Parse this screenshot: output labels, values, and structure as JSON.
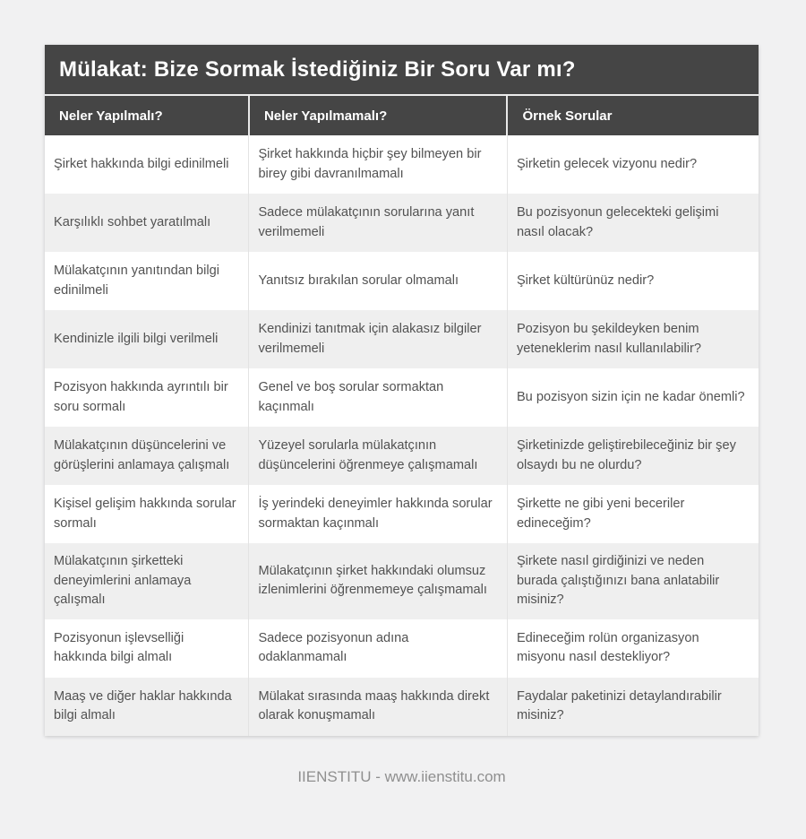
{
  "page": {
    "background": "#f1f1f2",
    "footer_credit": "IIENSTITU - www.iienstitu.com"
  },
  "table": {
    "title": "Mülakat: Bize Sormak İstediğiniz Bir Soru Var mı?",
    "columns": [
      "Neler Yapılmalı?",
      "Neler Yapılmamalı?",
      "Örnek Sorular"
    ],
    "rows": [
      [
        "Şirket hakkında bilgi edinilmeli",
        "Şirket hakkında hiçbir şey bilmeyen bir birey gibi davranılmamalı",
        "Şirketin gelecek vizyonu nedir?"
      ],
      [
        "Karşılıklı sohbet yaratılmalı",
        "Sadece mülakatçının sorularına yanıt verilmemeli",
        "Bu pozisyonun gelecekteki gelişimi nasıl olacak?"
      ],
      [
        "Mülakatçının yanıtından bilgi edinilmeli",
        "Yanıtsız bırakılan sorular olmamalı",
        "Şirket kültürünüz nedir?"
      ],
      [
        "Kendinizle ilgili bilgi verilmeli",
        "Kendinizi tanıtmak için alakasız bilgiler verilmemeli",
        "Pozisyon bu şekildeyken benim yeteneklerim nasıl kullanılabilir?"
      ],
      [
        "Pozisyon hakkında ayrıntılı bir soru sormalı",
        "Genel ve boş sorular sormaktan kaçınmalı",
        "Bu pozisyon sizin için ne kadar önemli?"
      ],
      [
        "Mülakatçının düşüncelerini ve görüşlerini anlamaya çalışmalı",
        "Yüzeyel sorularla mülakatçının düşüncelerini öğrenmeye çalışmamalı",
        "Şirketinizde geliştirebileceğiniz bir şey olsaydı bu ne olurdu?"
      ],
      [
        "Kişisel gelişim hakkında sorular sormalı",
        "İş yerindeki deneyimler hakkında sorular sormaktan kaçınmalı",
        "Şirkette ne gibi yeni beceriler edineceğim?"
      ],
      [
        "Mülakatçının şirketteki deneyimlerini anlamaya çalışmalı",
        "Mülakatçının şirket hakkındaki olumsuz izlenimlerini öğrenmemeye çalışmamalı",
        "Şirkete nasıl girdiğinizi ve neden burada çalıştığınızı bana anlatabilir misiniz?"
      ],
      [
        "Pozisyonun işlevselliği hakkında bilgi almalı",
        "Sadece pozisyonun adına odaklanmamalı",
        "Edineceğim rolün organizasyon misyonu nasıl destekliyor?"
      ],
      [
        "Maaş ve diğer haklar hakkında bilgi almalı",
        "Mülakat sırasında maaş hakkında direkt olarak konuşmamalı",
        "Faydalar paketinizi detaylandırabilir misiniz?"
      ]
    ],
    "colors": {
      "header_bg": "#454545",
      "header_text": "#ffffff",
      "row_bg": "#ffffff",
      "row_alt_bg": "#efefef",
      "body_text": "#525252",
      "border": "#e3e3e3",
      "footer_text": "#8f8f8f",
      "page_bg": "#f1f1f2"
    }
  }
}
